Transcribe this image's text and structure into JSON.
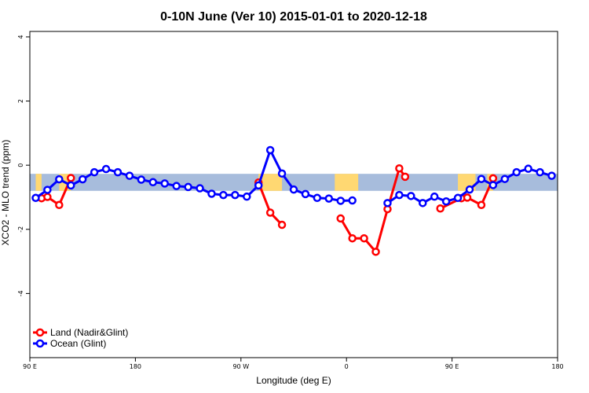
{
  "chart_data": {
    "type": "line",
    "title": "0-10N June (Ver 10)   2015-01-01 to 2020-12-18",
    "xlabel": "Longitude (deg E)",
    "ylabel": "XCO2 - MLO trend (ppm)",
    "xlim": [
      90,
      540
    ],
    "ylim": [
      -6.0,
      4.17
    ],
    "x_ticks": [
      {
        "v": 90,
        "label": "90 E"
      },
      {
        "v": 180,
        "label": "180"
      },
      {
        "v": 270,
        "label": "90 W"
      },
      {
        "v": 360,
        "label": "0"
      },
      {
        "v": 450,
        "label": "90 E"
      },
      {
        "v": 540,
        "label": "180"
      }
    ],
    "y_ticks": [
      {
        "v": 4,
        "label": "4"
      },
      {
        "v": 2,
        "label": "2"
      },
      {
        "v": 0,
        "label": "0"
      },
      {
        "v": -2,
        "label": "-2"
      },
      {
        "v": -4,
        "label": "-4"
      }
    ],
    "band": {
      "ymin": -0.8,
      "ymax": -0.27,
      "ocean_color": "#a7bcdc",
      "land_color": "#ffd872"
    },
    "land_regions": [
      [
        95,
        100
      ],
      [
        115,
        125
      ],
      [
        285,
        305
      ],
      [
        350,
        370
      ],
      [
        480,
        485
      ],
      [
        455,
        470
      ]
    ],
    "legend_position": "bottom-left",
    "series": [
      {
        "name": "Land (Nadir&Glint)",
        "color": "#ff0000",
        "x": [
          100,
          105,
          115,
          125,
          null,
          285,
          295,
          305,
          null,
          355,
          365,
          375,
          385,
          395,
          405,
          410,
          null,
          440,
          458,
          463,
          475,
          485
        ],
        "y": [
          -1.03,
          -0.99,
          -1.24,
          -0.4,
          null,
          -0.54,
          -1.48,
          -1.86,
          null,
          -1.66,
          -2.28,
          -2.28,
          -2.7,
          -1.37,
          -0.1,
          -0.36,
          null,
          -1.35,
          -1.03,
          -1.01,
          -1.24,
          -0.41
        ]
      },
      {
        "name": "Ocean (Glint)",
        "color": "#0000ff",
        "x": [
          95,
          105,
          115,
          125,
          135,
          145,
          155,
          165,
          175,
          185,
          195,
          205,
          215,
          225,
          235,
          245,
          255,
          265,
          275,
          285,
          295,
          305,
          315,
          325,
          335,
          345,
          355,
          365,
          null,
          395,
          405,
          415,
          425,
          435,
          445,
          455,
          465,
          475,
          485,
          495,
          505,
          515,
          525,
          535
        ],
        "y": [
          -1.02,
          -0.77,
          -0.44,
          -0.63,
          -0.44,
          -0.22,
          -0.12,
          -0.22,
          -0.33,
          -0.45,
          -0.53,
          -0.57,
          -0.65,
          -0.68,
          -0.72,
          -0.89,
          -0.93,
          -0.93,
          -0.98,
          -0.63,
          0.47,
          -0.26,
          -0.76,
          -0.9,
          -1.02,
          -1.04,
          -1.11,
          -1.1,
          null,
          -1.18,
          -0.93,
          -0.96,
          -1.18,
          -0.98,
          -1.13,
          -1.02,
          -0.76,
          -0.43,
          -0.62,
          -0.43,
          -0.22,
          -0.11,
          -0.22,
          -0.33
        ]
      }
    ]
  }
}
